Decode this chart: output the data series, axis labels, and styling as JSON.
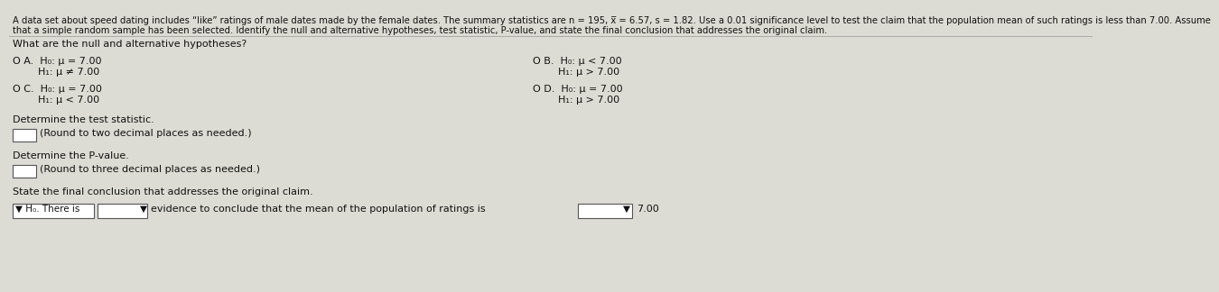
{
  "bg_color": "#dcdcd4",
  "text_color": "#111111",
  "header_line1": "A data set about speed dating includes “like” ratings of male dates made by the female dates. The summary statistics are n = 195, x̅ = 6.57, s = 1.82. Use a 0.01 significance level to test the claim that the population mean of such ratings is less than 7.00. Assume",
  "header_line2": "that a simple random sample has been selected. Identify the null and alternative hypotheses, test statistic, P-value, and state the final conclusion that addresses the original claim.",
  "question1": "What are the null and alternative hypotheses?",
  "optA_line1": "O A.  H₀: μ = 7.00",
  "optA_line2": "        H₁: μ ≠ 7.00",
  "optB_line1": "O B.  H₀: μ < 7.00",
  "optB_line2": "        H₁: μ > 7.00",
  "optC_line1": "O C.  H₀: μ = 7.00",
  "optC_line2": "        H₁: μ < 7.00",
  "optD_line1": "O D.  H₀: μ = 7.00",
  "optD_line2": "        H₁: μ > 7.00",
  "q2_label": "Determine the test statistic.",
  "q2_hint": "(Round to two decimal places as needed.)",
  "q3_label": "Determine the P-value.",
  "q3_hint": "(Round to three decimal places as needed.)",
  "q4_label": "State the final conclusion that addresses the original claim.",
  "conclusion_mid": "evidence to conclude that the mean of the population of ratings is",
  "conclusion_end": "7.00",
  "fs_header": 7.2,
  "fs_body": 8.0,
  "fs_options": 8.0
}
